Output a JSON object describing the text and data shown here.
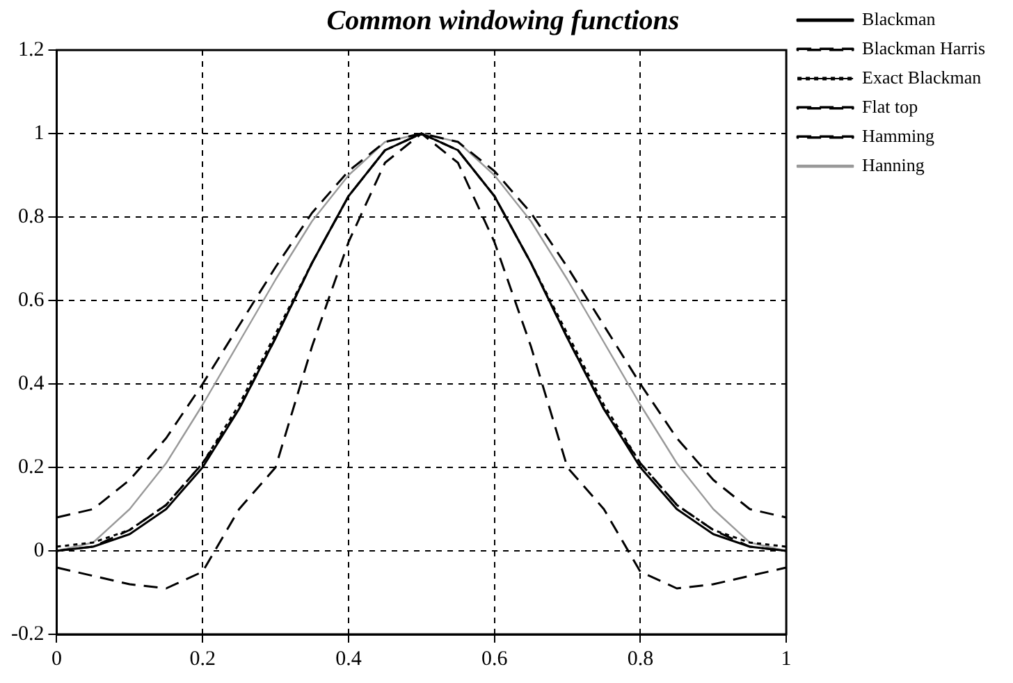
{
  "chart_data": {
    "type": "line",
    "title": "Common windowing functions",
    "x": [
      0,
      0.05,
      0.1,
      0.15,
      0.2,
      0.25,
      0.3,
      0.35,
      0.4,
      0.45,
      0.5,
      0.55,
      0.6,
      0.65,
      0.7,
      0.75,
      0.8,
      0.85,
      0.9,
      0.95,
      1
    ],
    "series": [
      {
        "name": "Blackman",
        "color": "#000000",
        "line_style": "solid",
        "values": [
          0,
          0.01,
          0.04,
          0.1,
          0.2,
          0.34,
          0.51,
          0.69,
          0.85,
          0.96,
          1,
          0.96,
          0.85,
          0.69,
          0.51,
          0.34,
          0.2,
          0.1,
          0.04,
          0.01,
          0
        ]
      },
      {
        "name": "Blackman Harris",
        "color": "#000000",
        "line_style": "dashed",
        "values": [
          0,
          0.01,
          0.05,
          0.11,
          0.21,
          0.34,
          0.51,
          0.69,
          0.85,
          0.96,
          1,
          0.96,
          0.85,
          0.69,
          0.51,
          0.34,
          0.21,
          0.11,
          0.05,
          0.01,
          0
        ]
      },
      {
        "name": "Exact Blackman",
        "color": "#000000",
        "line_style": "dotted",
        "values": [
          0.01,
          0.02,
          0.05,
          0.11,
          0.21,
          0.35,
          0.52,
          0.69,
          0.85,
          0.96,
          1,
          0.96,
          0.85,
          0.69,
          0.52,
          0.35,
          0.21,
          0.11,
          0.05,
          0.02,
          0.01
        ]
      },
      {
        "name": "Flat top",
        "color": "#000000",
        "line_style": "dashed",
        "values": [
          -0.04,
          -0.06,
          -0.08,
          -0.09,
          -0.05,
          0.1,
          0.2,
          0.49,
          0.74,
          0.93,
          1,
          0.93,
          0.74,
          0.49,
          0.2,
          0.1,
          -0.05,
          -0.09,
          -0.08,
          -0.06,
          -0.04
        ]
      },
      {
        "name": "Hamming",
        "color": "#000000",
        "line_style": "dashed",
        "values": [
          0.08,
          0.1,
          0.17,
          0.27,
          0.4,
          0.54,
          0.68,
          0.81,
          0.91,
          0.98,
          1,
          0.98,
          0.91,
          0.81,
          0.68,
          0.54,
          0.4,
          0.27,
          0.17,
          0.1,
          0.08
        ]
      },
      {
        "name": "Hanning",
        "color": "#999999",
        "line_style": "solid",
        "values": [
          0,
          0.02,
          0.1,
          0.21,
          0.35,
          0.5,
          0.65,
          0.79,
          0.9,
          0.98,
          1,
          0.98,
          0.9,
          0.79,
          0.65,
          0.5,
          0.35,
          0.21,
          0.1,
          0.02,
          0
        ]
      }
    ],
    "xlim": [
      0,
      1
    ],
    "xticks": [
      0,
      0.2,
      0.4,
      0.6,
      0.8,
      1
    ],
    "ylim": [
      -0.2,
      1.2
    ],
    "yticks": [
      -0.2,
      0,
      0.2,
      0.4,
      0.6,
      0.8,
      1,
      1.2
    ],
    "grid": true,
    "legend": "top right",
    "marker": "none"
  }
}
